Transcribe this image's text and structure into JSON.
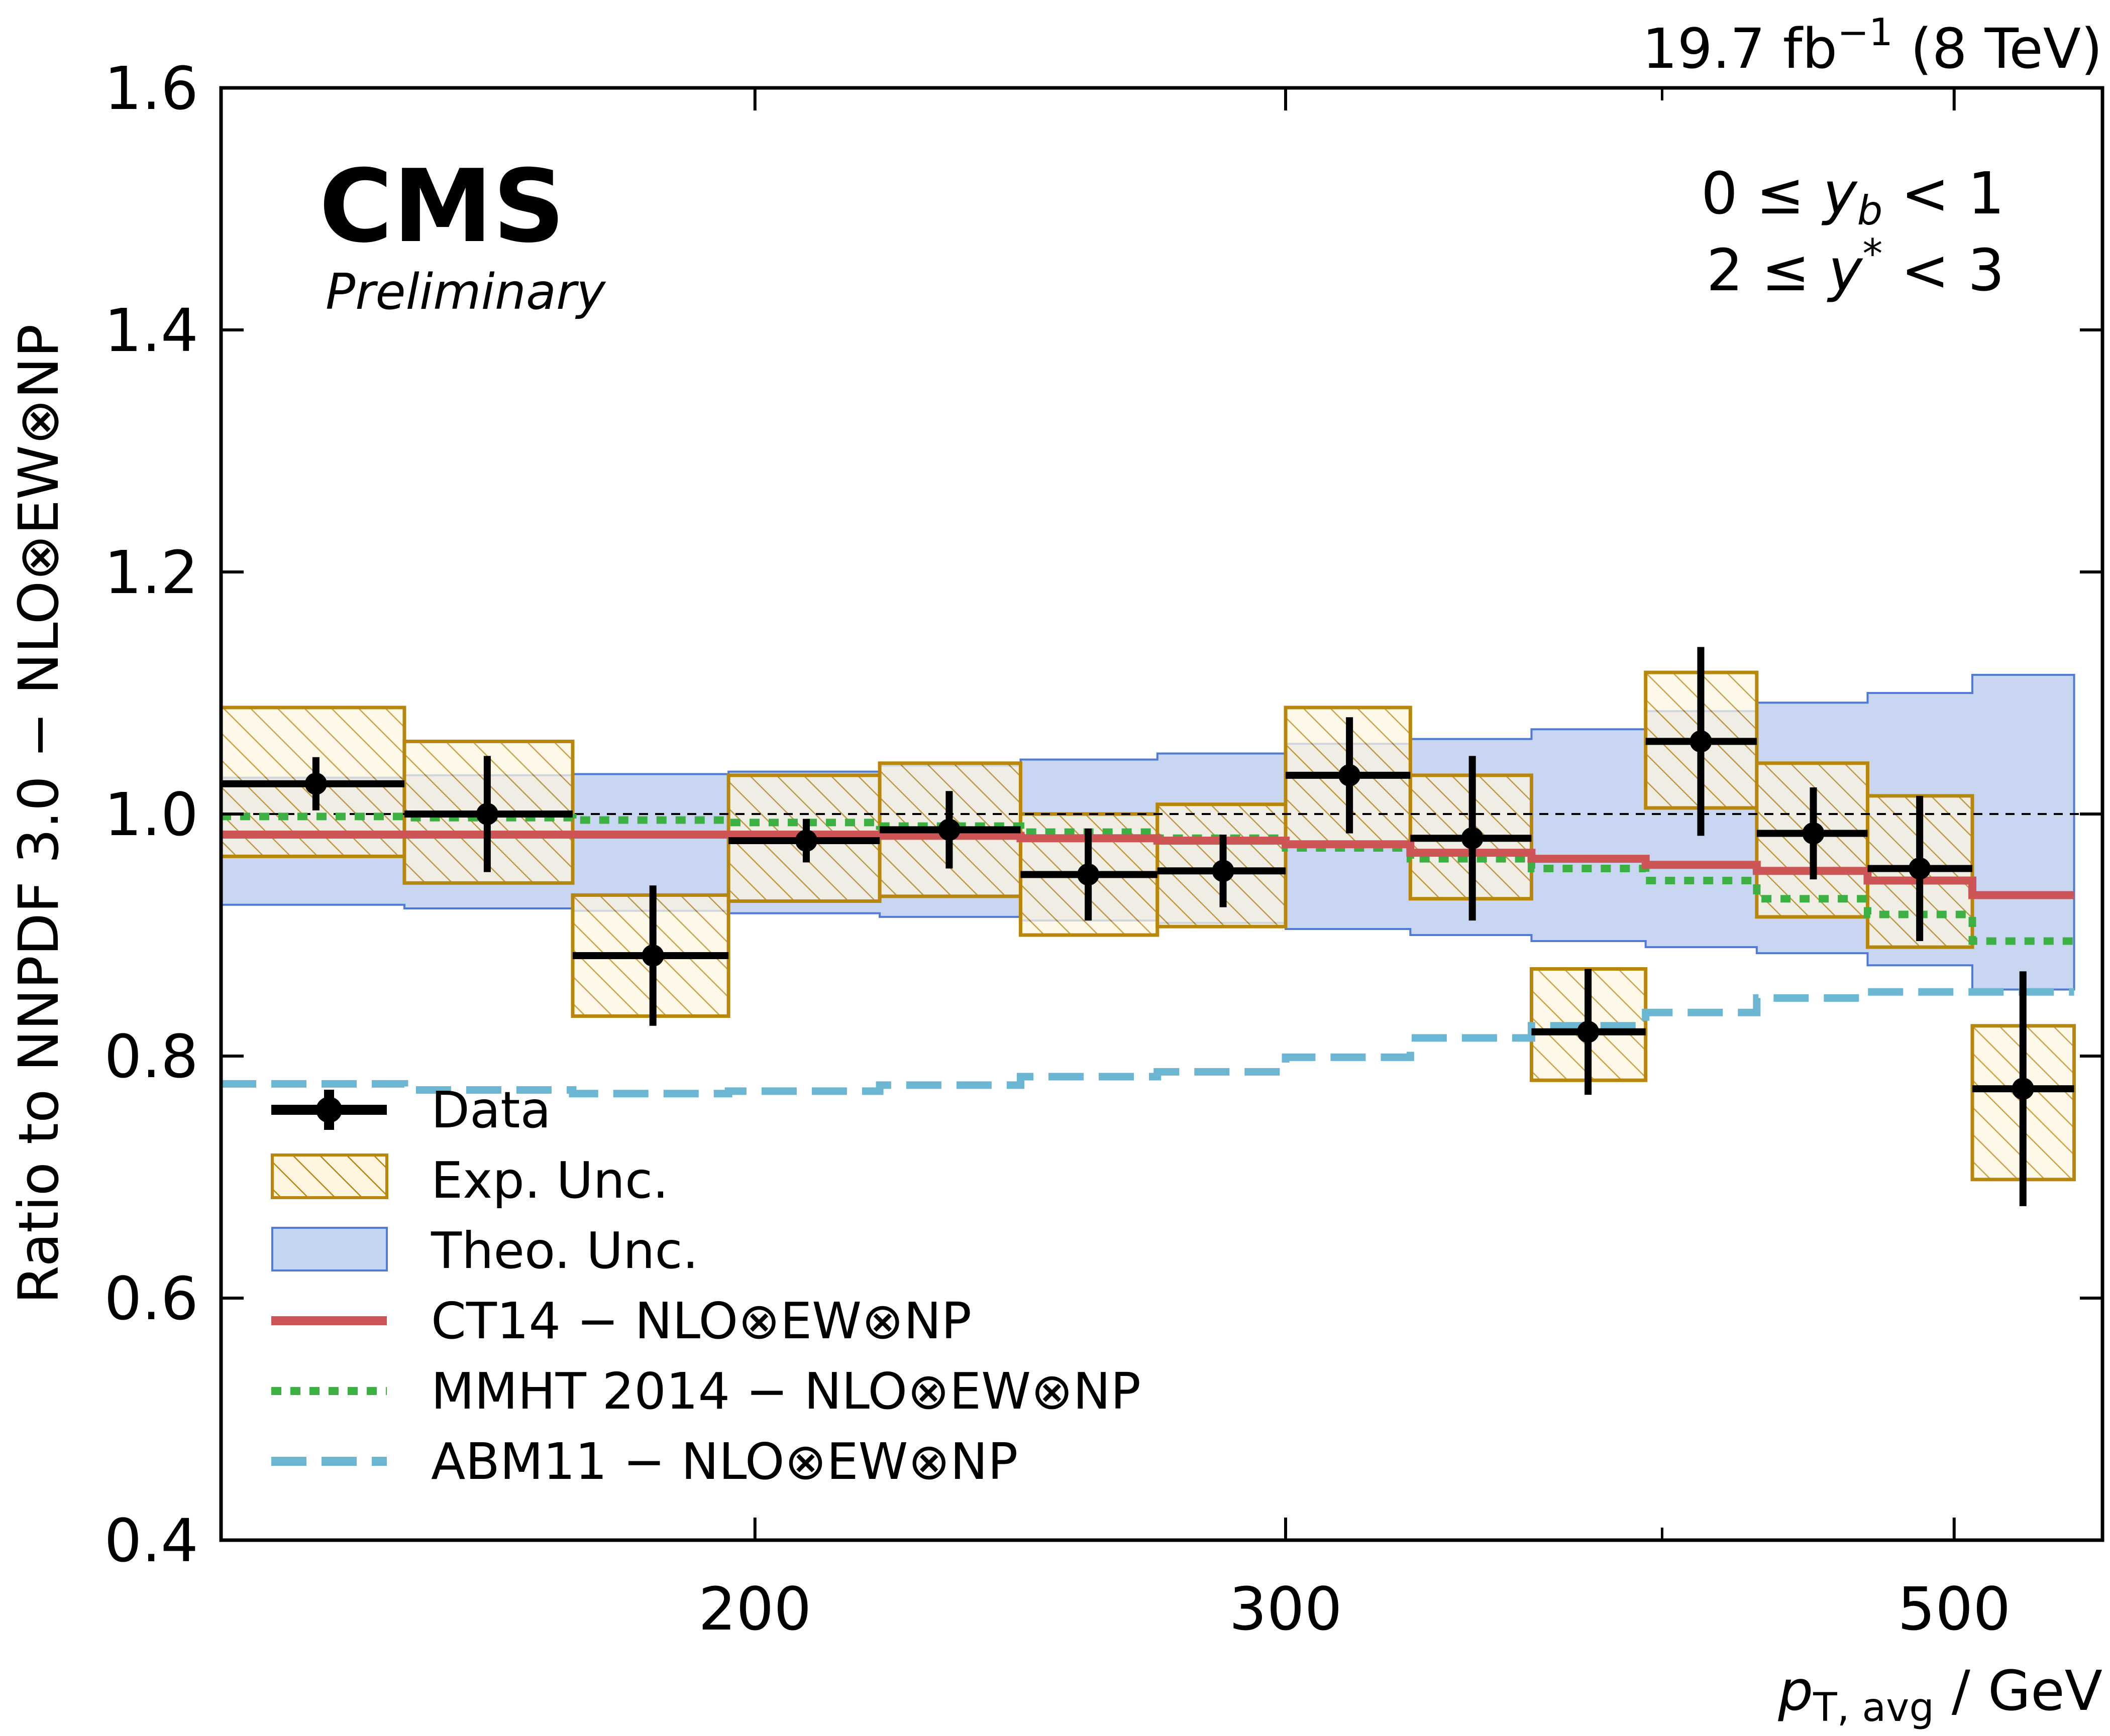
{
  "chart_data": {
    "type": "line",
    "lumi_text": {
      "main": "19.7 fb",
      "sup": "−1",
      "rest": " (8 TeV)"
    },
    "experiment": "CMS",
    "status": "Preliminary",
    "cuts": {
      "line1": {
        "pre": "0 ≤ ",
        "var": "y",
        "sub": "b",
        "post": " < 1"
      },
      "line2": {
        "pre": "2 ≤ ",
        "var": "y",
        "sup": "*",
        "post": " < 3"
      }
    },
    "ylabel": "Ratio to NNPDF 3.0 − NLO⊗EW⊗NP",
    "xlabel": {
      "var": "p",
      "sub": "T, avg",
      "unit": " / GeV"
    },
    "xscale": "log",
    "xlim": [
      133,
      560
    ],
    "ylim": [
      0.4,
      1.6
    ],
    "yticks": [
      "0.4",
      "0.6",
      "0.8",
      "1.0",
      "1.2",
      "1.4",
      "1.6"
    ],
    "yticks_values": [
      0.4,
      0.6,
      0.8,
      1.0,
      1.2,
      1.4,
      1.6
    ],
    "xticks_major": [
      "200",
      "300",
      "500"
    ],
    "xticks_major_values": [
      200,
      300,
      500
    ],
    "xticks_minor_values": [
      400
    ],
    "reference_line": 1.0,
    "bin_edges": [
      133,
      153,
      174,
      196,
      220,
      245,
      272,
      300,
      330,
      362,
      395,
      430,
      468,
      507,
      548
    ],
    "data": {
      "label": "Data",
      "x": [
        143,
        163,
        185,
        208,
        232,
        258,
        286,
        315,
        346,
        378,
        412,
        449,
        487,
        527
      ],
      "y": [
        1.025,
        1.0,
        0.883,
        0.978,
        0.987,
        0.95,
        0.953,
        1.032,
        0.98,
        0.82,
        1.06,
        0.984,
        0.955,
        0.773
      ],
      "yerr": [
        0.022,
        0.048,
        0.058,
        0.018,
        0.032,
        0.038,
        0.03,
        0.048,
        0.068,
        0.052,
        0.078,
        0.038,
        0.06,
        0.097
      ]
    },
    "exp_unc": {
      "label": "Exp. Unc.",
      "low": [
        0.965,
        0.943,
        0.833,
        0.928,
        0.932,
        0.9,
        0.907,
        0.975,
        0.93,
        0.78,
        1.005,
        0.915,
        0.89,
        0.698
      ],
      "high": [
        1.088,
        1.06,
        0.933,
        1.032,
        1.042,
        1.0,
        1.008,
        1.088,
        1.032,
        0.872,
        1.117,
        1.042,
        1.015,
        0.825
      ]
    },
    "theo_unc": {
      "label": "Theo. Unc.",
      "low": [
        0.925,
        0.922,
        0.92,
        0.918,
        0.915,
        0.912,
        0.91,
        0.905,
        0.9,
        0.895,
        0.89,
        0.885,
        0.875,
        0.855
      ],
      "high": [
        1.03,
        1.032,
        1.033,
        1.035,
        1.04,
        1.045,
        1.05,
        1.058,
        1.062,
        1.07,
        1.085,
        1.092,
        1.1,
        1.115
      ]
    },
    "series": [
      {
        "name": "CT14 − NLO⊗EW⊗NP",
        "values": [
          0.983,
          0.983,
          0.983,
          0.983,
          0.982,
          0.98,
          0.978,
          0.975,
          0.968,
          0.963,
          0.958,
          0.953,
          0.945,
          0.933
        ]
      },
      {
        "name": "MMHT 2014 − NLO⊗EW⊗NP",
        "values": [
          0.998,
          0.997,
          0.995,
          0.993,
          0.99,
          0.985,
          0.98,
          0.972,
          0.963,
          0.955,
          0.945,
          0.93,
          0.917,
          0.895
        ]
      },
      {
        "name": "ABM11 − NLO⊗EW⊗NP",
        "values": [
          0.777,
          0.772,
          0.769,
          0.771,
          0.776,
          0.783,
          0.787,
          0.799,
          0.815,
          0.825,
          0.836,
          0.848,
          0.853,
          0.853
        ]
      }
    ],
    "colors": {
      "data": "#000000",
      "exp_edge": "#b8860b",
      "exp_fill": "#fdf5e0",
      "theo_fill": "#a7bde8",
      "theo_edge": "#4f7ad6",
      "ct14": "#cd5555",
      "mmht": "#3cb043",
      "abm11": "#6ab6d3"
    },
    "legend_position": "lower-left",
    "grid": false
  }
}
